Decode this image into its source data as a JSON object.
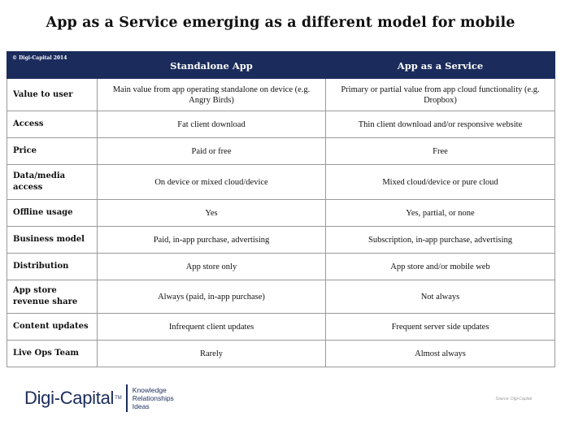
{
  "title": "App as a Service emerging as a different model for mobile",
  "table": {
    "copyright": "© Digi-Capital 2014",
    "columns": [
      "Standalone App",
      "App as a Service"
    ],
    "rows": [
      {
        "label": "Value to user",
        "standalone": "Main value from app operating standalone on device (e.g. Angry Birds)",
        "aaas": "Primary or partial value from app cloud functionality (e.g. Dropbox)"
      },
      {
        "label": "Access",
        "standalone": "Fat client download",
        "aaas": "Thin client download and/or responsive website"
      },
      {
        "label": "Price",
        "standalone": "Paid or free",
        "aaas": "Free"
      },
      {
        "label": "Data/media access",
        "standalone": "On device or mixed cloud/device",
        "aaas": "Mixed cloud/device or pure cloud"
      },
      {
        "label": "Offline usage",
        "standalone": "Yes",
        "aaas": "Yes, partial, or none"
      },
      {
        "label": "Business model",
        "standalone": "Paid, in-app purchase, advertising",
        "aaas": "Subscription, in-app purchase, advertising"
      },
      {
        "label": "Distribution",
        "standalone": "App store only",
        "aaas": "App store and/or mobile web"
      },
      {
        "label": "App store revenue share",
        "standalone": "Always (paid, in-app purchase)",
        "aaas": "Not always"
      },
      {
        "label": "Content updates",
        "standalone": "Infrequent client updates",
        "aaas": "Frequent server side updates"
      },
      {
        "label": "Live Ops Team",
        "standalone": "Rarely",
        "aaas": "Almost always"
      }
    ]
  },
  "footer": {
    "logo_text": "Digi-Capital",
    "logo_tm": "TM",
    "tagline": [
      "Knowledge",
      "Relationships",
      "Ideas"
    ],
    "source": "Source: Digi-Capital"
  },
  "colors": {
    "header_bg": "#1b2c5c",
    "header_text": "#ffffff",
    "border": "#9a9a9a",
    "brand": "#1b2c5c"
  }
}
